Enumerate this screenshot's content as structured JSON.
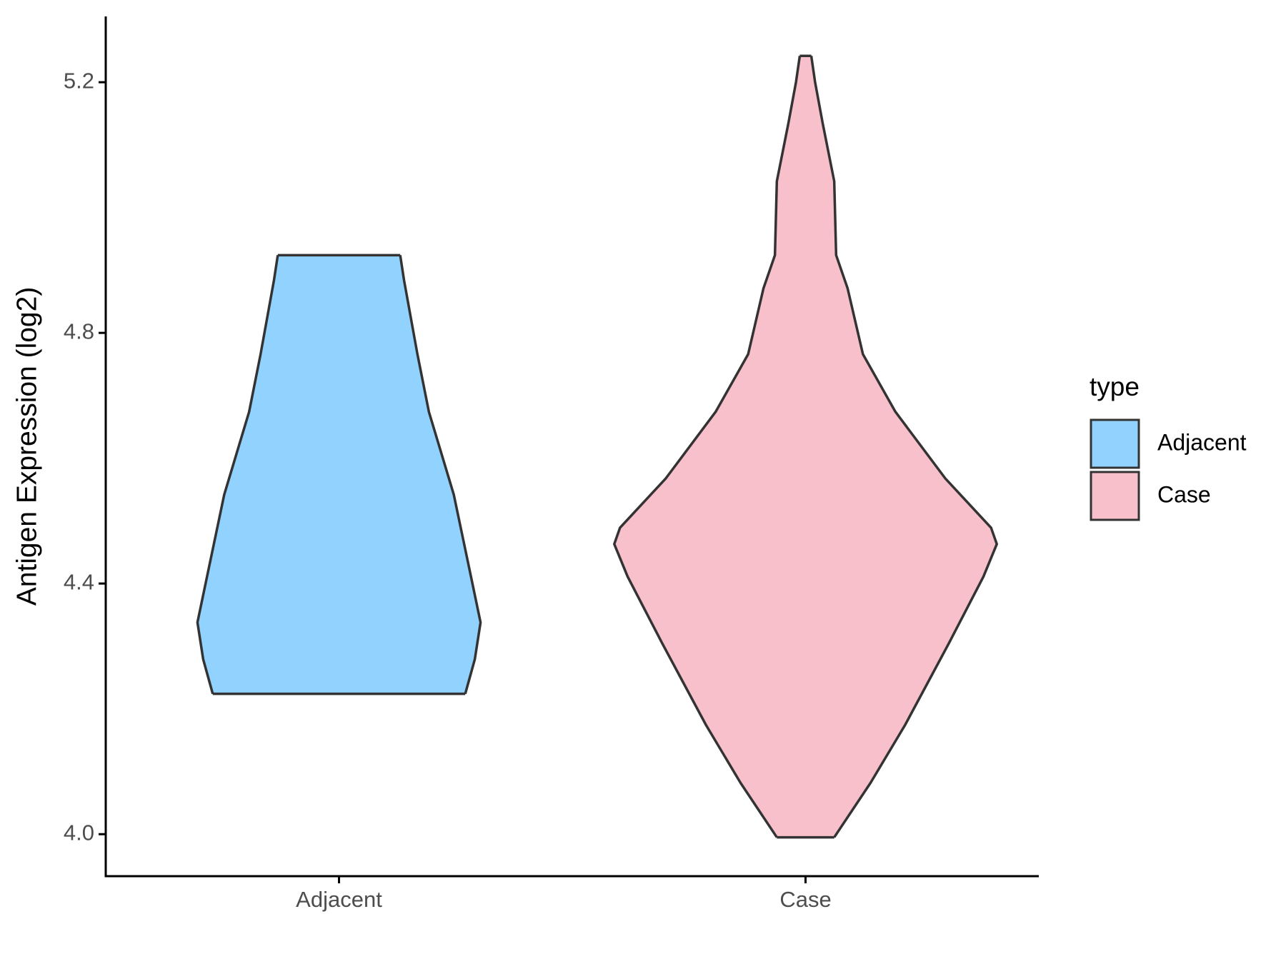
{
  "chart_data": {
    "type": "violin",
    "ylabel": "Antigen Expression (log2)",
    "legend_title": "type",
    "categories": [
      "Adjacent",
      "Case"
    ],
    "series": [
      {
        "name": "Adjacent",
        "color": "#92d2fe",
        "y": [
          4.924,
          4.884,
          4.766,
          4.674,
          4.542,
          4.411,
          4.338,
          4.279,
          4.224
        ],
        "density": [
          0.32,
          0.34,
          0.41,
          0.47,
          0.6,
          0.69,
          0.74,
          0.71,
          0.66
        ]
      },
      {
        "name": "Case",
        "color": "#f7c0cb",
        "y": [
          5.242,
          5.2,
          5.134,
          5.042,
          4.924,
          4.871,
          4.766,
          4.674,
          4.568,
          4.489,
          4.463,
          4.411,
          4.305,
          4.174,
          4.082,
          3.995
        ],
        "density": [
          0.03,
          0.05,
          0.09,
          0.15,
          0.16,
          0.22,
          0.3,
          0.47,
          0.73,
          0.97,
          1.0,
          0.93,
          0.75,
          0.52,
          0.34,
          0.15
        ]
      }
    ],
    "ylim": [
      3.933,
      5.305
    ],
    "yticks": [
      {
        "value": 4.0,
        "label": "4.0"
      },
      4.4,
      4.8,
      5.2
    ],
    "legend": "right"
  }
}
